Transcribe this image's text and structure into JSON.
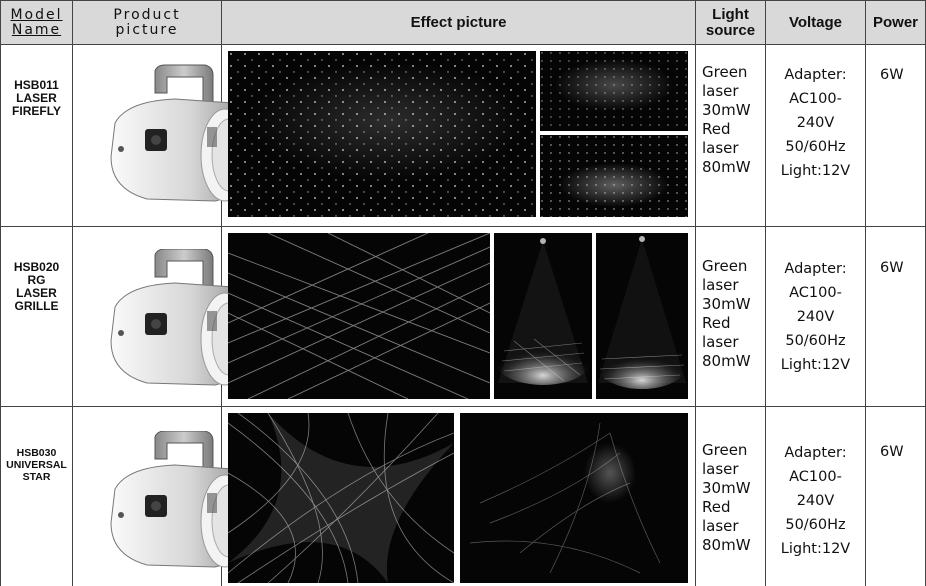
{
  "headers": {
    "model": [
      "Model",
      "Name"
    ],
    "product": [
      "Product",
      "picture"
    ],
    "effect": "Effect picture",
    "light": [
      "Light",
      "source"
    ],
    "voltage": "Voltage",
    "power": "Power"
  },
  "rows": [
    {
      "model": [
        "HSB011",
        "LASER",
        "FIREFLY"
      ],
      "light": [
        "Green",
        "laser",
        "30mW",
        "Red",
        "laser",
        "80mW"
      ],
      "voltage": [
        "Adapter:",
        "AC100-",
        "240V",
        "50/60Hz",
        "Light:12V"
      ],
      "power": "6W"
    },
    {
      "model": [
        "HSB020",
        "RG",
        "LASER",
        "GRILLE"
      ],
      "light": [
        "Green",
        "laser",
        "30mW",
        "Red",
        "laser",
        "80mW"
      ],
      "voltage": [
        "Adapter:",
        "AC100-",
        "240V",
        "50/60Hz",
        "Light:12V"
      ],
      "power": "6W"
    },
    {
      "model": [
        "HSB030",
        "UNIVERSAL",
        "STAR"
      ],
      "light": [
        "Green",
        "laser",
        "30mW",
        "Red",
        "laser",
        "80mW"
      ],
      "voltage": [
        "Adapter:",
        "AC100-",
        "240V",
        "50/60Hz",
        "Light:12V"
      ],
      "power": "6W"
    }
  ],
  "colors": {
    "header_bg": "#d9d9d9",
    "border": "#444444",
    "photo_bg": "#000000"
  }
}
